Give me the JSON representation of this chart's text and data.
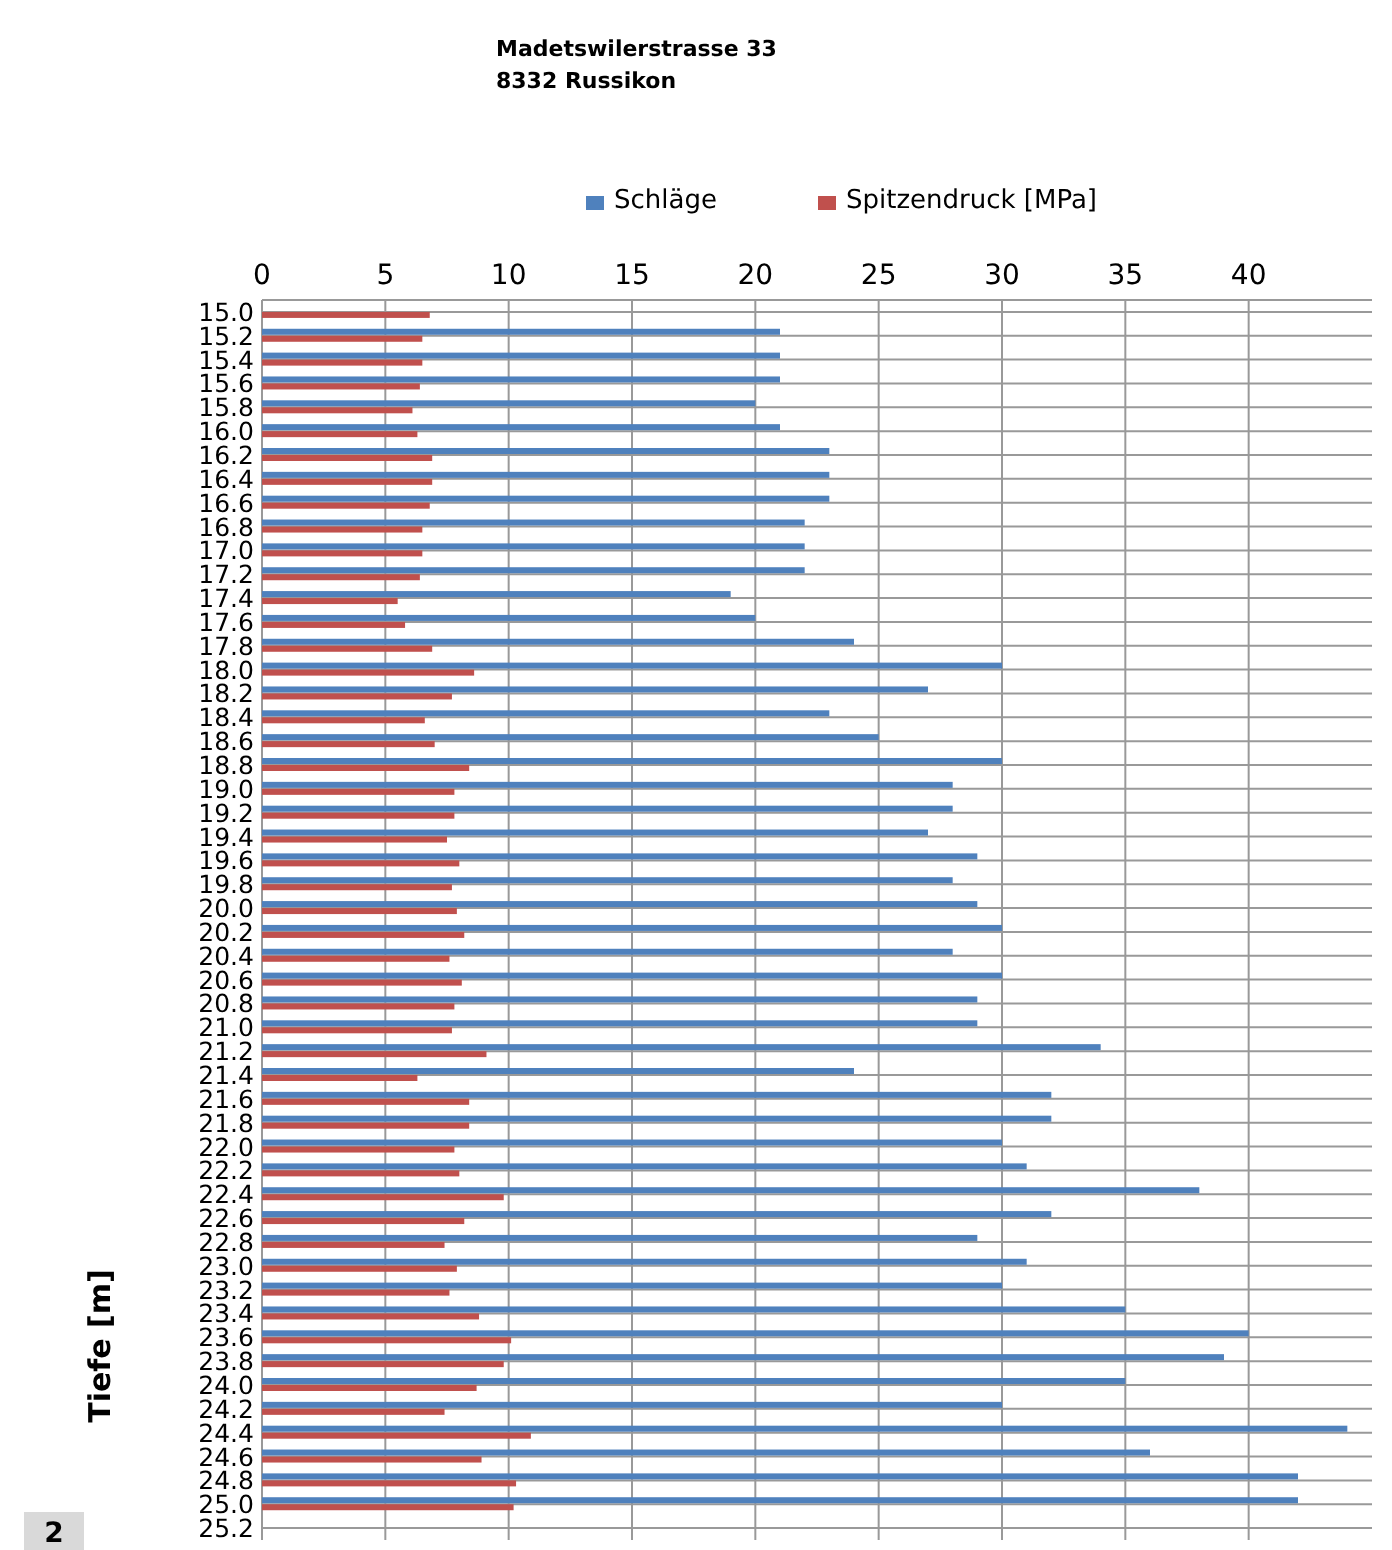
{
  "chart_data": {
    "type": "bar",
    "orientation": "horizontal",
    "ylabel": "Tiefe [m]",
    "legend": "top",
    "grid": true,
    "annotations": [
      "Madetswilerstrasse 33",
      "8332 Russikon",
      "2"
    ],
    "categories": [
      "15.0",
      "15.2",
      "15.4",
      "15.6",
      "15.8",
      "16.0",
      "16.2",
      "16.4",
      "16.6",
      "16.8",
      "17.0",
      "17.2",
      "17.4",
      "17.6",
      "17.8",
      "18.0",
      "18.2",
      "18.4",
      "18.6",
      "18.8",
      "19.0",
      "19.2",
      "19.4",
      "19.6",
      "19.8",
      "20.0",
      "20.2",
      "20.4",
      "20.6",
      "20.8",
      "21.0",
      "21.2",
      "21.4",
      "21.6",
      "21.8",
      "22.0",
      "22.2",
      "22.4",
      "22.6",
      "22.8",
      "23.0",
      "23.2",
      "23.4",
      "23.6",
      "23.8",
      "24.0",
      "24.2",
      "24.4",
      "24.6",
      "24.8",
      "25.0",
      "25.2"
    ],
    "series": [
      {
        "name": "Schläge",
        "color": "#4f81bd",
        "values": [
          null,
          21,
          21,
          21,
          20,
          21,
          23,
          23,
          23,
          22,
          22,
          22,
          19,
          20,
          24,
          30,
          27,
          23,
          25,
          30,
          28,
          28,
          27,
          29,
          28,
          29,
          30,
          28,
          30,
          29,
          29,
          34,
          24,
          32,
          32,
          30,
          31,
          38,
          32,
          29,
          31,
          30,
          35,
          40,
          39,
          35,
          30,
          44,
          36,
          42,
          42,
          null
        ]
      },
      {
        "name": "Spitzendruck [MPa]",
        "color": "#c0504d",
        "values": [
          6.8,
          6.5,
          6.5,
          6.4,
          6.1,
          6.3,
          6.9,
          6.9,
          6.8,
          6.5,
          6.5,
          6.4,
          5.5,
          5.8,
          6.9,
          8.6,
          7.7,
          6.6,
          7.0,
          8.4,
          7.8,
          7.8,
          7.5,
          8.0,
          7.7,
          7.9,
          8.2,
          7.6,
          8.1,
          7.8,
          7.7,
          9.1,
          6.3,
          8.4,
          8.4,
          7.8,
          8.0,
          9.8,
          8.2,
          7.4,
          7.9,
          7.6,
          8.8,
          10.1,
          9.8,
          8.7,
          7.4,
          10.9,
          8.9,
          10.3,
          10.2,
          null
        ]
      }
    ],
    "xlim": [
      0,
      45
    ],
    "xticks": [
      0,
      5,
      10,
      15,
      20,
      25,
      30,
      35,
      40
    ]
  }
}
